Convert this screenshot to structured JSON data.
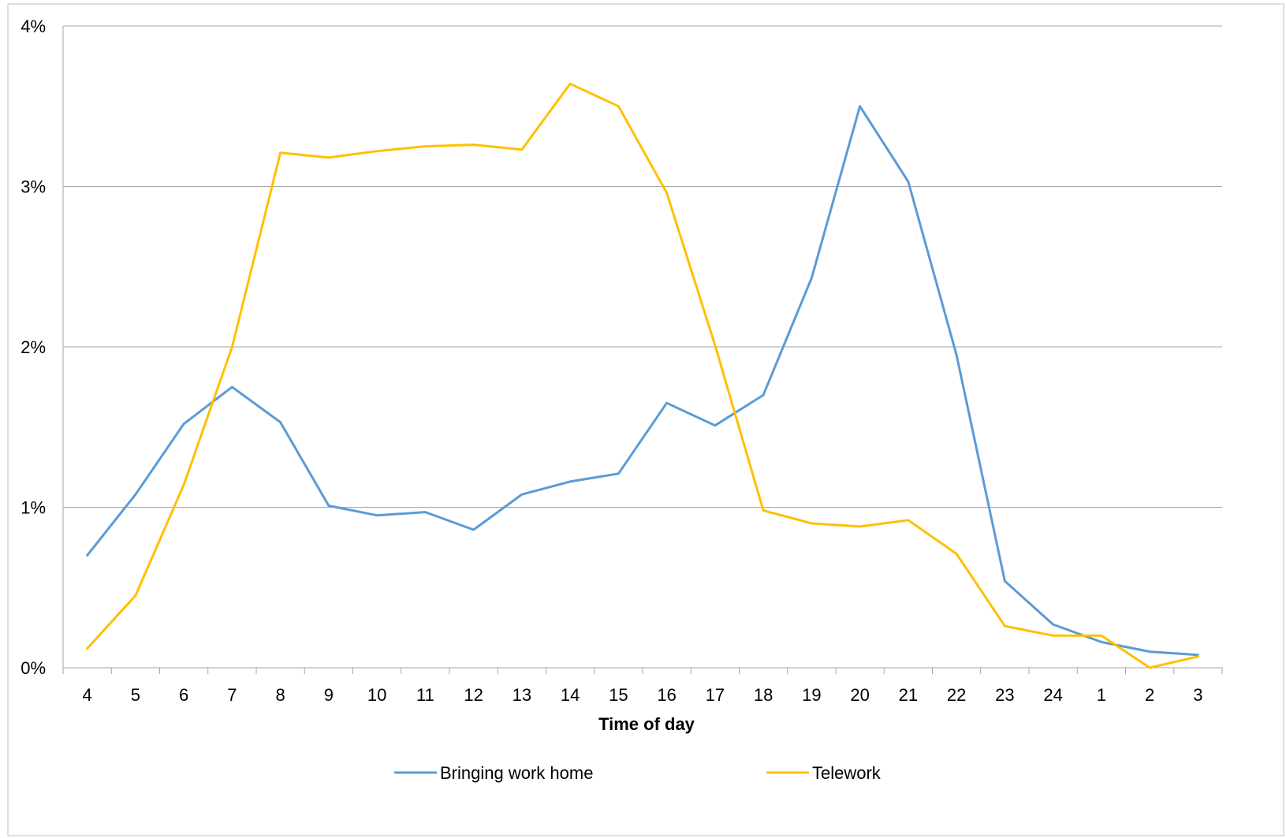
{
  "chart_data": {
    "type": "line",
    "xlabel": "Time of day",
    "ylabel": "",
    "categories": [
      "4",
      "5",
      "6",
      "7",
      "8",
      "9",
      "10",
      "11",
      "12",
      "13",
      "14",
      "15",
      "16",
      "17",
      "18",
      "19",
      "20",
      "21",
      "22",
      "23",
      "24",
      "1",
      "2",
      "3"
    ],
    "y_ticks": [
      "0%",
      "1%",
      "2%",
      "3%",
      "4%"
    ],
    "ylim": [
      0,
      4
    ],
    "grid": true,
    "legend_position": "bottom",
    "series": [
      {
        "name": "Bringing work home",
        "color": "#5b9bd5",
        "values": [
          0.7,
          1.08,
          1.52,
          1.75,
          1.53,
          1.01,
          0.95,
          0.97,
          0.86,
          1.08,
          1.16,
          1.21,
          1.65,
          1.51,
          1.7,
          2.43,
          3.5,
          3.03,
          1.95,
          0.54,
          0.27,
          0.16,
          0.1,
          0.08
        ]
      },
      {
        "name": "Telework",
        "color": "#ffc000",
        "values": [
          0.12,
          0.45,
          1.14,
          2.0,
          3.21,
          3.18,
          3.22,
          3.25,
          3.26,
          3.23,
          3.64,
          3.5,
          2.96,
          2.01,
          0.98,
          0.9,
          0.88,
          0.92,
          0.71,
          0.26,
          0.2,
          0.2,
          0.0,
          0.07
        ]
      }
    ]
  }
}
